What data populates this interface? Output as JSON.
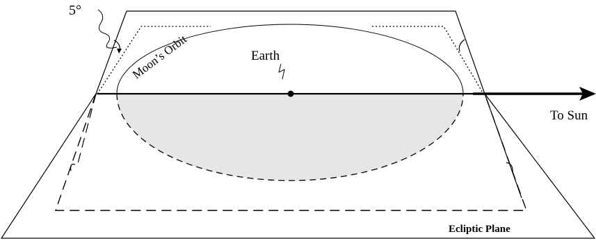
{
  "labels": {
    "angle": "5°",
    "orbit": "Moon’s Orbit",
    "earth": "Earth",
    "sun_direction": "To Sun",
    "plane": "Ecliptic Plane"
  },
  "colors": {
    "ink": "#000000",
    "shaded_half": "#e6e6e6",
    "background": "#ffffff"
  }
}
